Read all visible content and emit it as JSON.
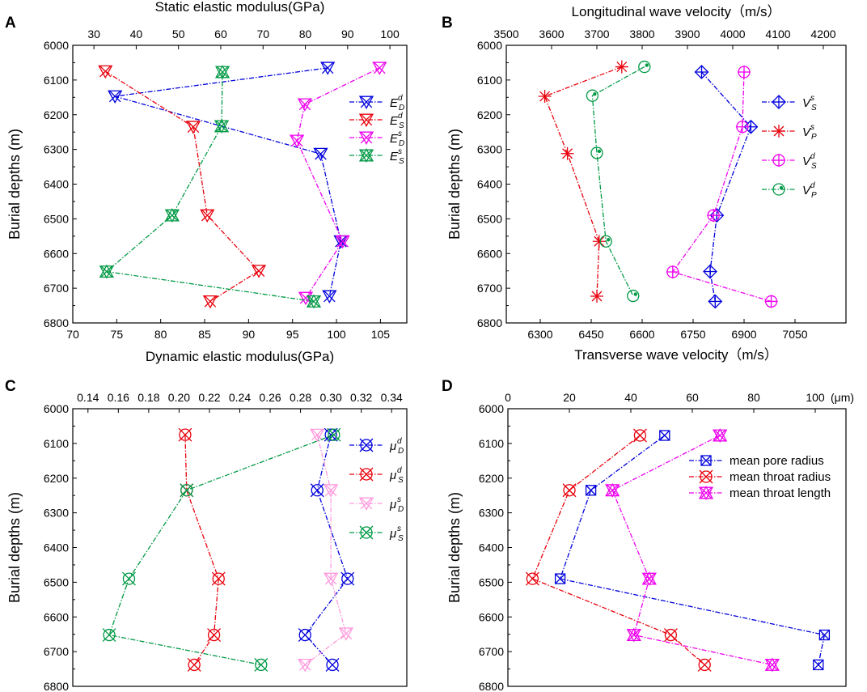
{
  "figure": {
    "panel_labels": [
      "A",
      "B",
      "C",
      "D"
    ],
    "ylabel": "Burial depths (m)"
  },
  "chart_data": [
    {
      "type": "line",
      "panel": "A",
      "ylabel": "Burial depths (m)",
      "ylim": [
        6800,
        6000
      ],
      "yticks": [
        6000,
        6100,
        6200,
        6300,
        6400,
        6500,
        6600,
        6700,
        6800
      ],
      "xlabel_bottom": "Dynamic elastic modulus(GPa)",
      "xlim_bottom": [
        70,
        108
      ],
      "xticks_bottom": [
        70,
        75,
        80,
        85,
        90,
        95,
        100,
        105
      ],
      "xlabel_top": "Static elastic modulus(GPa)",
      "xlim_top": [
        25,
        104
      ],
      "xticks_top": [
        30,
        40,
        50,
        60,
        70,
        80,
        90,
        100
      ],
      "series": [
        {
          "name_main": "E",
          "sup": "d",
          "sub": "D",
          "color": "#0000dd",
          "marker": "x-tri-down",
          "axis": "bottom",
          "points": [
            [
              99.0,
              6065
            ],
            [
              74.8,
              6147
            ],
            [
              98.2,
              6313
            ],
            [
              100.5,
              6565
            ],
            [
              99.2,
              6723
            ]
          ]
        },
        {
          "name_main": "E",
          "sup": "d",
          "sub": "S",
          "color": "#e8000b",
          "marker": "x-tri-down",
          "axis": "top",
          "points": [
            [
              32.7,
              6075
            ],
            [
              53.5,
              6235
            ],
            [
              56.8,
              6490
            ],
            [
              69.0,
              6650
            ],
            [
              57.5,
              6738
            ]
          ]
        },
        {
          "name_main": "E",
          "sup": "s",
          "sub": "D",
          "color": "#ee00ee",
          "marker": "x-tri-down",
          "axis": "bottom",
          "points": [
            [
              104.9,
              6065
            ],
            [
              96.4,
              6170
            ],
            [
              95.5,
              6275
            ],
            [
              100.7,
              6565
            ],
            [
              96.5,
              6728
            ]
          ]
        },
        {
          "name_main": "E",
          "sup": "s",
          "sub": "S",
          "color": "#009944",
          "marker": "x-tri-both",
          "axis": "top",
          "points": [
            [
              60.4,
              6077
            ],
            [
              60.2,
              6233
            ],
            [
              48.5,
              6490
            ],
            [
              33.0,
              6652
            ],
            [
              82.0,
              6738
            ]
          ]
        }
      ]
    },
    {
      "type": "line",
      "panel": "B",
      "ylabel": "Burial depths (m)",
      "ylim": [
        6800,
        6000
      ],
      "yticks": [
        6000,
        6100,
        6200,
        6300,
        6400,
        6500,
        6600,
        6700,
        6800
      ],
      "xlabel_bottom": "Transverse wave velocity（m/s）",
      "xlim_bottom": [
        6200,
        7200
      ],
      "xticks_bottom": [
        6300,
        6450,
        6600,
        6750,
        6900,
        7050
      ],
      "xlabel_top": "Longitudinal wave velocity（m/s）",
      "xlim_top": [
        3500,
        4250
      ],
      "xticks_top": [
        3500,
        3600,
        3700,
        3800,
        3900,
        4000,
        4100,
        4200
      ],
      "series": [
        {
          "name_main": "V",
          "sup": "s",
          "sub": "S",
          "color": "#0000dd",
          "marker": "circle-plus-diamond",
          "axis": "bottom",
          "points": [
            [
              6775,
              6077
            ],
            [
              6920,
              6235
            ],
            [
              6820,
              6490
            ],
            [
              6800,
              6652
            ],
            [
              6815,
              6738
            ]
          ]
        },
        {
          "name_main": "V",
          "sup": "s",
          "sub": "P",
          "color": "#e8000b",
          "marker": "asterisk",
          "axis": "top",
          "points": [
            [
              3755,
              6062
            ],
            [
              3585,
              6147
            ],
            [
              3635,
              6312
            ],
            [
              3705,
              6565
            ],
            [
              3700,
              6723
            ]
          ]
        },
        {
          "name_main": "V",
          "sup": "d",
          "sub": "S",
          "color": "#ee00ee",
          "marker": "circle-plus",
          "axis": "bottom",
          "points": [
            [
              6900,
              6077
            ],
            [
              6895,
              6235
            ],
            [
              6810,
              6490
            ],
            [
              6690,
              6653
            ],
            [
              6980,
              6738
            ]
          ]
        },
        {
          "name_main": "V",
          "sup": "d",
          "sub": "P",
          "color": "#009944",
          "marker": "circle-dot",
          "axis": "top",
          "points": [
            [
              3805,
              6062
            ],
            [
              3690,
              6145
            ],
            [
              3700,
              6310
            ],
            [
              3720,
              6565
            ],
            [
              3780,
              6722
            ]
          ]
        }
      ]
    },
    {
      "type": "line",
      "panel": "C",
      "ylabel": "Burial depths (m)",
      "ylim": [
        6800,
        6000
      ],
      "yticks": [
        6000,
        6100,
        6200,
        6300,
        6400,
        6500,
        6600,
        6700,
        6800
      ],
      "xlabel_top": "",
      "xlim_top": [
        0.13,
        0.35
      ],
      "xticks_top": [
        0.14,
        0.16,
        0.18,
        0.2,
        0.22,
        0.24,
        0.26,
        0.28,
        0.3,
        0.32,
        0.34
      ],
      "series": [
        {
          "name_main": "μ",
          "sup": "d",
          "sub": "D",
          "color": "#0000dd",
          "marker": "circle-x",
          "axis": "top",
          "points": [
            [
              0.3,
              6075
            ],
            [
              0.291,
              6235
            ],
            [
              0.311,
              6490
            ],
            [
              0.283,
              6652
            ],
            [
              0.301,
              6738
            ]
          ]
        },
        {
          "name_main": "μ",
          "sup": "d",
          "sub": "S",
          "color": "#e8000b",
          "marker": "circle-x",
          "axis": "top",
          "points": [
            [
              0.204,
              6075
            ],
            [
              0.205,
              6235
            ],
            [
              0.226,
              6490
            ],
            [
              0.223,
              6652
            ],
            [
              0.21,
              6738
            ]
          ]
        },
        {
          "name_main": "μ",
          "sup": "s",
          "sub": "D",
          "color": "#ff99dd",
          "marker": "x-tri-down",
          "axis": "top",
          "points": [
            [
              0.291,
              6075
            ],
            [
              0.3,
              6235
            ],
            [
              0.3,
              6490
            ],
            [
              0.31,
              6648
            ],
            [
              0.283,
              6738
            ]
          ]
        },
        {
          "name_main": "μ",
          "sup": "s",
          "sub": "S",
          "color": "#009944",
          "marker": "circle-x",
          "axis": "top",
          "points": [
            [
              0.302,
              6075
            ],
            [
              0.205,
              6235
            ],
            [
              0.167,
              6490
            ],
            [
              0.154,
              6652
            ],
            [
              0.254,
              6738
            ]
          ]
        }
      ]
    },
    {
      "type": "line",
      "panel": "D",
      "ylabel": "Burial depths (m)",
      "ylim": [
        6800,
        6000
      ],
      "yticks": [
        6000,
        6100,
        6200,
        6300,
        6400,
        6500,
        6600,
        6700,
        6800
      ],
      "xlabel_top": "",
      "unit_label": "(μm)",
      "xlim_top": [
        0,
        110
      ],
      "xticks_top": [
        0,
        20,
        40,
        60,
        80,
        100
      ],
      "series": [
        {
          "label": "mean pore radius",
          "color": "#0000dd",
          "marker": "square-x",
          "axis": "top",
          "points": [
            [
              51,
              6077
            ],
            [
              27,
              6235
            ],
            [
              17,
              6490
            ],
            [
              103,
              6652
            ],
            [
              101,
              6738
            ]
          ]
        },
        {
          "label": "mean throat radius",
          "color": "#e8000b",
          "marker": "circle-x",
          "axis": "top",
          "points": [
            [
              43,
              6077
            ],
            [
              20,
              6235
            ],
            [
              8,
              6490
            ],
            [
              53,
              6652
            ],
            [
              64,
              6738
            ]
          ]
        },
        {
          "label": "mean throat length",
          "color": "#ee00ee",
          "marker": "x-tri-both",
          "axis": "top",
          "points": [
            [
              69,
              6077
            ],
            [
              34,
              6235
            ],
            [
              46,
              6490
            ],
            [
              41,
              6652
            ],
            [
              86,
              6738
            ]
          ]
        }
      ]
    }
  ]
}
